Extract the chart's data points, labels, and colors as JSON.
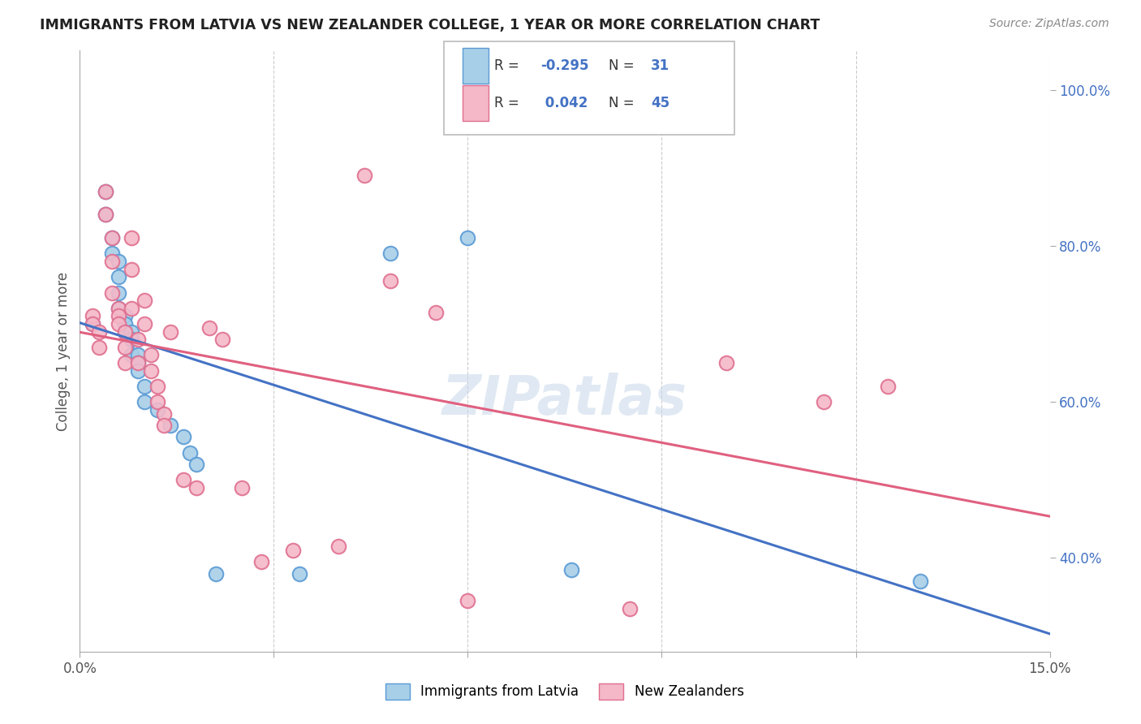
{
  "title": "IMMIGRANTS FROM LATVIA VS NEW ZEALANDER COLLEGE, 1 YEAR OR MORE CORRELATION CHART",
  "source": "Source: ZipAtlas.com",
  "ylabel": "College, 1 year or more",
  "xlim": [
    0.0,
    0.15
  ],
  "ylim": [
    0.28,
    1.05
  ],
  "x_ticks": [
    0.0,
    0.03,
    0.06,
    0.09,
    0.12,
    0.15
  ],
  "x_tick_labels": [
    "0.0%",
    "",
    "",
    "",
    "",
    "15.0%"
  ],
  "y_ticks_right": [
    0.4,
    0.6,
    0.8,
    1.0
  ],
  "y_tick_labels_right": [
    "40.0%",
    "60.0%",
    "80.0%",
    "100.0%"
  ],
  "legend_labels": [
    "Immigrants from Latvia",
    "New Zealanders"
  ],
  "blue_color": "#a8cfe8",
  "blue_edge_color": "#5b9bd5",
  "pink_color": "#f4b8c8",
  "pink_edge_color": "#e07090",
  "R_blue": -0.295,
  "N_blue": 31,
  "R_pink": 0.042,
  "N_pink": 45,
  "blue_line_color": "#4472c4",
  "pink_line_color": "#e06080",
  "blue_scatter_x": [
    0.002,
    0.004,
    0.004,
    0.005,
    0.005,
    0.006,
    0.006,
    0.006,
    0.006,
    0.007,
    0.007,
    0.007,
    0.008,
    0.008,
    0.008,
    0.009,
    0.009,
    0.009,
    0.01,
    0.01,
    0.012,
    0.014,
    0.016,
    0.017,
    0.018,
    0.021,
    0.034,
    0.048,
    0.06,
    0.076,
    0.13
  ],
  "blue_scatter_y": [
    0.7,
    0.87,
    0.84,
    0.81,
    0.79,
    0.78,
    0.76,
    0.74,
    0.72,
    0.71,
    0.7,
    0.69,
    0.69,
    0.68,
    0.66,
    0.66,
    0.65,
    0.64,
    0.62,
    0.6,
    0.59,
    0.57,
    0.555,
    0.535,
    0.52,
    0.38,
    0.38,
    0.79,
    0.81,
    0.385,
    0.37
  ],
  "pink_scatter_x": [
    0.002,
    0.002,
    0.003,
    0.003,
    0.004,
    0.004,
    0.005,
    0.005,
    0.005,
    0.006,
    0.006,
    0.006,
    0.007,
    0.007,
    0.007,
    0.008,
    0.008,
    0.008,
    0.009,
    0.009,
    0.01,
    0.01,
    0.011,
    0.011,
    0.012,
    0.012,
    0.013,
    0.013,
    0.014,
    0.016,
    0.018,
    0.02,
    0.022,
    0.025,
    0.028,
    0.033,
    0.04,
    0.044,
    0.048,
    0.055,
    0.06,
    0.085,
    0.1,
    0.115,
    0.125
  ],
  "pink_scatter_y": [
    0.71,
    0.7,
    0.69,
    0.67,
    0.87,
    0.84,
    0.81,
    0.78,
    0.74,
    0.72,
    0.71,
    0.7,
    0.69,
    0.67,
    0.65,
    0.81,
    0.77,
    0.72,
    0.68,
    0.65,
    0.73,
    0.7,
    0.66,
    0.64,
    0.62,
    0.6,
    0.585,
    0.57,
    0.69,
    0.5,
    0.49,
    0.695,
    0.68,
    0.49,
    0.395,
    0.41,
    0.415,
    0.89,
    0.755,
    0.715,
    0.345,
    0.335,
    0.65,
    0.6,
    0.62
  ],
  "watermark": "ZIPatlas",
  "background_color": "#ffffff",
  "grid_color": "#cccccc",
  "legend_box_color": "#ffffff",
  "legend_border_color": "#bbbbbb"
}
